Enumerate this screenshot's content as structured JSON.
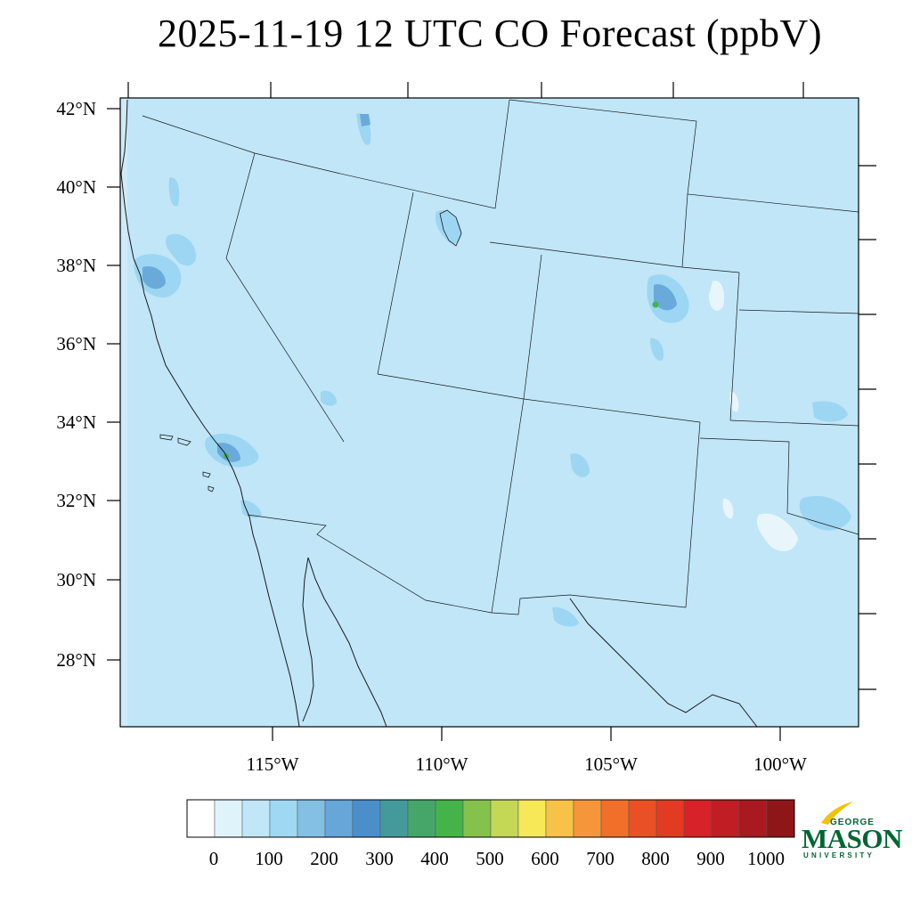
{
  "title": "2025-11-19 12 UTC CO Forecast (ppbV)",
  "map": {
    "lat_ticks": [
      "42°N",
      "40°N",
      "38°N",
      "36°N",
      "34°N",
      "32°N",
      "30°N",
      "28°N"
    ],
    "lon_ticks": [
      "115°W",
      "110°W",
      "105°W",
      "100°W"
    ],
    "base_fill": "#c0e6f8",
    "enhanced_fill": "#9dd6f2",
    "high_fill": "#6aaadb",
    "peak_fill": "#44b449",
    "low_fill": "#e8f6fc"
  },
  "colorbar": {
    "labels": [
      "0",
      "100",
      "200",
      "300",
      "400",
      "500",
      "600",
      "700",
      "800",
      "900",
      "1000"
    ],
    "colors": [
      "#ffffff",
      "#dff3fb",
      "#c0e6f8",
      "#9ed8f3",
      "#84bfe4",
      "#66a6d8",
      "#4a8fc9",
      "#449a9b",
      "#46a66a",
      "#44b449",
      "#84c24c",
      "#c4d856",
      "#f6e856",
      "#f8c246",
      "#f6963a",
      "#f26f2a",
      "#ea5026",
      "#e23b24",
      "#d62228",
      "#c01d24",
      "#a81a20",
      "#8e1518"
    ]
  },
  "logo": {
    "line1": "GEORGE",
    "line2": "MASON",
    "line3": "UNIVERSITY",
    "green": "#006633",
    "gold": "#f2c300"
  }
}
